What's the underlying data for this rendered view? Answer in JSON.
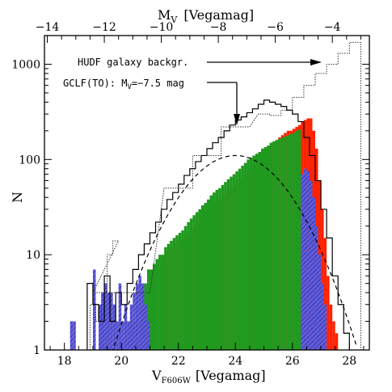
{
  "chart_data": {
    "type": "bar",
    "scale": "log-y histogram",
    "xlabel_main": "V",
    "xlabel_sub": "F606W",
    "xlabel_unit": "[Vegamag]",
    "toplabel_main": "M",
    "toplabel_sub": "V",
    "toplabel_unit": "[Vegamag]",
    "ylabel": "N",
    "xlim": [
      17.3,
      28.7
    ],
    "ylim": [
      1,
      2000
    ],
    "top_axis_offset": 31.4,
    "x_ticks": [
      "18",
      "20",
      "22",
      "24",
      "26",
      "28"
    ],
    "top_ticks": [
      "−14",
      "−12",
      "−10",
      "−8",
      "−6",
      "−4"
    ],
    "y_ticks": [
      "1",
      "10",
      "100",
      "1000"
    ],
    "annotations": {
      "hudf": "HUDF galaxy backgr.",
      "gclf_prefix": "GCLF(TO): M",
      "gclf_sub": "V",
      "gclf_suffix": "=−7.5 mag"
    },
    "bin_width": 0.1,
    "bin_start": 17.8,
    "colors": {
      "green": "#1f9a1f",
      "red": "#ff2200",
      "blue": "#1e4fd8",
      "outline": "#000000",
      "dotted": "#333333"
    },
    "series": [
      {
        "key": "black_outline",
        "x": [
          18.9,
          19.1,
          19.3,
          19.5,
          19.7,
          19.9,
          20.1,
          20.3,
          20.5,
          20.7,
          20.9,
          21.1,
          21.3,
          21.5,
          21.7,
          21.9,
          22.1,
          22.3,
          22.5,
          22.7,
          22.9,
          23.1,
          23.3,
          23.5,
          23.7,
          23.9,
          24.1,
          24.3,
          24.5,
          24.7,
          24.9,
          25.1,
          25.3,
          25.5,
          25.7,
          25.9,
          26.1,
          26.3,
          26.5,
          26.7,
          26.9,
          27.1,
          27.3,
          27.5,
          27.7,
          27.9
        ],
        "values": [
          5,
          3,
          2,
          6,
          2,
          4,
          3,
          5,
          7,
          10,
          13,
          17,
          22,
          30,
          38,
          45,
          55,
          68,
          80,
          95,
          110,
          130,
          150,
          170,
          200,
          230,
          260,
          280,
          310,
          340,
          380,
          420,
          400,
          380,
          360,
          330,
          300,
          250,
          170,
          110,
          60,
          30,
          15,
          6,
          3,
          1.5
        ]
      },
      {
        "key": "dotted_outline",
        "x": [
          19.0,
          19.2,
          19.4,
          19.6,
          19.8,
          20.0,
          22.0,
          23.0,
          24.0,
          25.0,
          25.4,
          25.8,
          26.2,
          26.6,
          27.0,
          27.4,
          27.8,
          28.2
        ],
        "values": [
          3,
          2,
          4,
          10,
          14,
          4,
          50,
          110,
          220,
          300,
          290,
          330,
          450,
          600,
          800,
          1000,
          1300,
          1700
        ]
      },
      {
        "key": "red",
        "values": [
          0,
          0,
          0,
          0,
          0,
          0,
          0,
          0,
          0,
          0,
          0,
          0,
          0,
          0,
          0,
          0,
          0,
          0,
          0,
          0,
          0,
          0,
          0,
          0,
          0,
          0,
          0,
          0,
          0,
          0,
          0,
          0,
          0,
          0,
          0,
          0,
          9,
          10,
          11,
          12,
          12,
          13,
          14,
          15,
          16,
          17,
          18,
          20,
          22,
          24,
          25,
          27,
          29,
          31,
          34,
          36,
          38,
          40,
          43,
          46,
          50,
          53,
          56,
          60,
          65,
          70,
          75,
          80,
          86,
          92,
          100,
          108,
          120,
          130,
          140,
          150,
          160,
          170,
          180,
          190,
          200,
          200,
          210,
          220,
          230,
          250,
          260,
          270,
          270,
          200,
          130,
          60,
          30,
          15,
          6,
          3,
          2,
          1.5
        ]
      },
      {
        "key": "green",
        "values": [
          0,
          0,
          0,
          0,
          0,
          0,
          0,
          0,
          0,
          0,
          0,
          0,
          0,
          0,
          0,
          0,
          0,
          0,
          0,
          0,
          0,
          0,
          0,
          0,
          2,
          2,
          2,
          0,
          3,
          4,
          5,
          7,
          7,
          8,
          9,
          10,
          10,
          12,
          13,
          14,
          15,
          16,
          17,
          18,
          20,
          22,
          24,
          26,
          28,
          30,
          33,
          35,
          38,
          42,
          45,
          48,
          50,
          54,
          58,
          62,
          66,
          70,
          75,
          80,
          86,
          92,
          100,
          105,
          110,
          115,
          120,
          130,
          135,
          140,
          150,
          155,
          160,
          165,
          170,
          175,
          180,
          185,
          190,
          200,
          205,
          0,
          0,
          0,
          0,
          0,
          0,
          0,
          0,
          0,
          0,
          0,
          0,
          0
        ]
      },
      {
        "key": "blue",
        "values": [
          0,
          0,
          0,
          0,
          2,
          2,
          0,
          0,
          0,
          0,
          0,
          0,
          7,
          0,
          3,
          4,
          5,
          4,
          4,
          3,
          2,
          5,
          2,
          3,
          2,
          3,
          4,
          5,
          6,
          5,
          3,
          2,
          0,
          0,
          0,
          0,
          0,
          0,
          0,
          0,
          0,
          0,
          0,
          0,
          0,
          0,
          0,
          0,
          0,
          0,
          0,
          0,
          0,
          0,
          0,
          0,
          0,
          0,
          0,
          0,
          0,
          0,
          0,
          0,
          0,
          0,
          0,
          0,
          0,
          0,
          0,
          0,
          0,
          0,
          0,
          0,
          0,
          0,
          0,
          0,
          0,
          0,
          0,
          0,
          0,
          70,
          80,
          75,
          60,
          40,
          20,
          10,
          5,
          3,
          0,
          0,
          0,
          0
        ]
      }
    ],
    "gaussian": {
      "mean": 24.0,
      "sigma": 1.4,
      "peak": 110
    }
  }
}
